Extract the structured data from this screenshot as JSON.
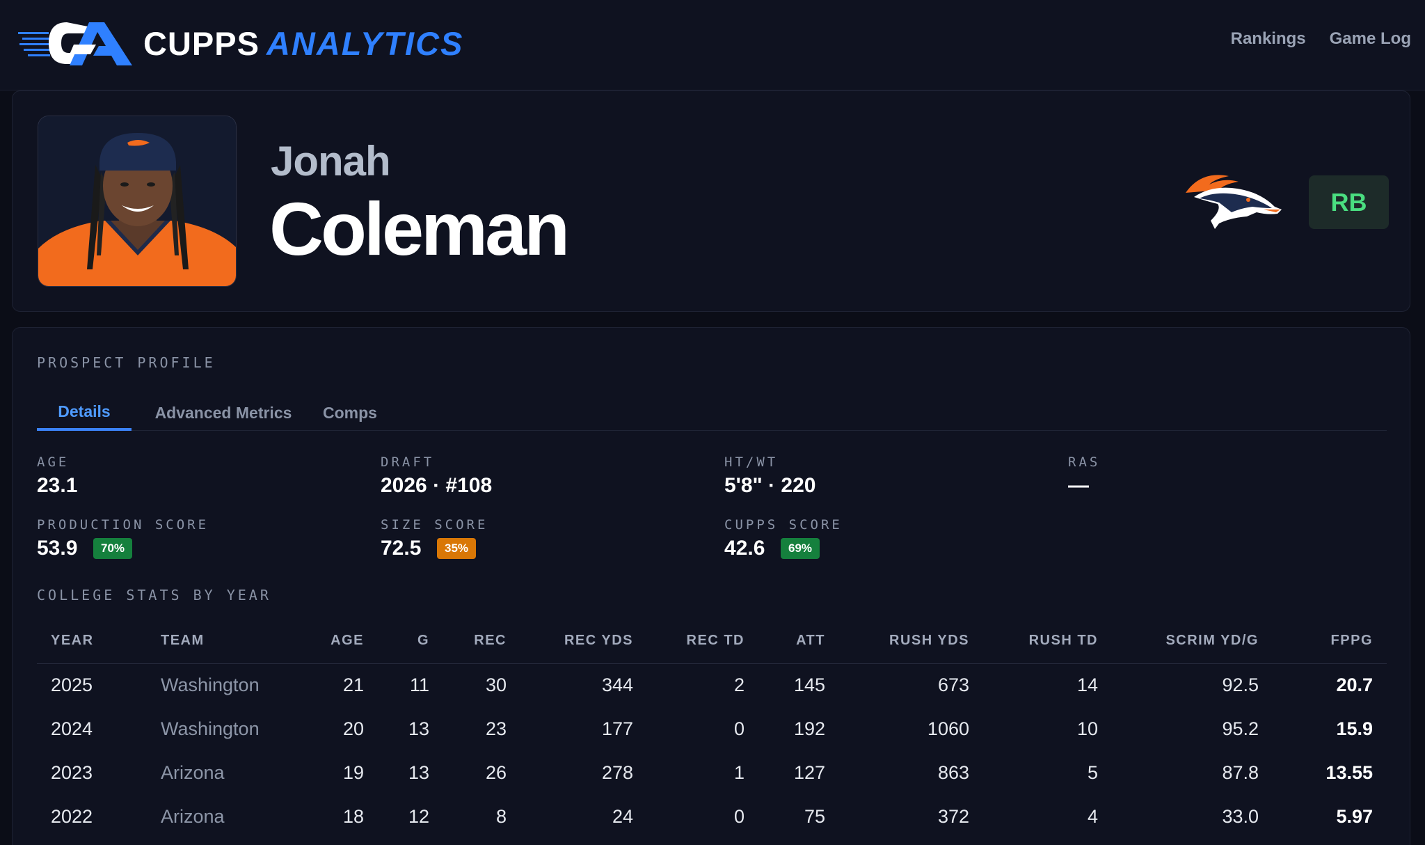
{
  "brand": {
    "name_primary": "CUPPS",
    "name_secondary": "ANALYTICS"
  },
  "nav": {
    "links": [
      "Rankings",
      "Game Log"
    ]
  },
  "player": {
    "first_name": "Jonah",
    "last_name": "Coleman",
    "position": "RB"
  },
  "profile": {
    "section_title": "PROSPECT PROFILE",
    "tabs": [
      "Details",
      "Advanced Metrics",
      "Comps"
    ],
    "active_tab": "Details",
    "stats": {
      "age": {
        "label": "AGE",
        "value": "23.1"
      },
      "draft": {
        "label": "DRAFT",
        "value": "2026 · #108"
      },
      "htwt": {
        "label": "HT/WT",
        "value": "5'8\" · 220"
      },
      "ras": {
        "label": "RAS",
        "value": "—"
      },
      "production": {
        "label": "PRODUCTION SCORE",
        "value": "53.9",
        "percentile": "70%"
      },
      "size": {
        "label": "SIZE SCORE",
        "value": "72.5",
        "percentile": "35%"
      },
      "cupps": {
        "label": "CUPPS SCORE",
        "value": "42.6",
        "percentile": "69%"
      }
    },
    "college_stats": {
      "title": "COLLEGE STATS BY YEAR",
      "columns": [
        "YEAR",
        "TEAM",
        "AGE",
        "G",
        "REC",
        "REC YDS",
        "REC TD",
        "ATT",
        "RUSH YDS",
        "RUSH TD",
        "SCRIM YD/G",
        "FPPG"
      ],
      "rows": [
        [
          "2025",
          "Washington",
          "21",
          "11",
          "30",
          "344",
          "2",
          "145",
          "673",
          "14",
          "92.5",
          "20.7"
        ],
        [
          "2024",
          "Washington",
          "20",
          "13",
          "23",
          "177",
          "0",
          "192",
          "1060",
          "10",
          "95.2",
          "15.9"
        ],
        [
          "2023",
          "Arizona",
          "19",
          "13",
          "26",
          "278",
          "1",
          "127",
          "863",
          "5",
          "87.8",
          "13.55"
        ],
        [
          "2022",
          "Arizona",
          "18",
          "12",
          "8",
          "24",
          "0",
          "75",
          "372",
          "4",
          "33.0",
          "5.97"
        ]
      ]
    }
  },
  "colors": {
    "background": "#0b0d17",
    "accent_blue": "#2f80ff",
    "position_green": "#4ade80",
    "percentile_green": "#15803d",
    "percentile_orange": "#d97706"
  },
  "icons": {
    "logo": "cupps-analytics-logo",
    "team": "broncos-horse-logo",
    "headshot": "player-headshot"
  }
}
